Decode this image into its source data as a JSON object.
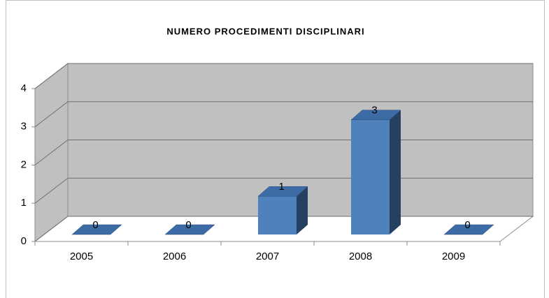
{
  "chart_data": {
    "type": "bar3d",
    "title": "NUMERO PROCEDIMENTI DISCIPLINARI",
    "categories": [
      "2005",
      "2006",
      "2007",
      "2008",
      "2009"
    ],
    "values": [
      0,
      0,
      1,
      3,
      0
    ],
    "color": "#4f81bd",
    "ylim": [
      0,
      4
    ],
    "yticks": [
      0,
      1,
      2,
      3,
      4
    ],
    "grid": true
  }
}
